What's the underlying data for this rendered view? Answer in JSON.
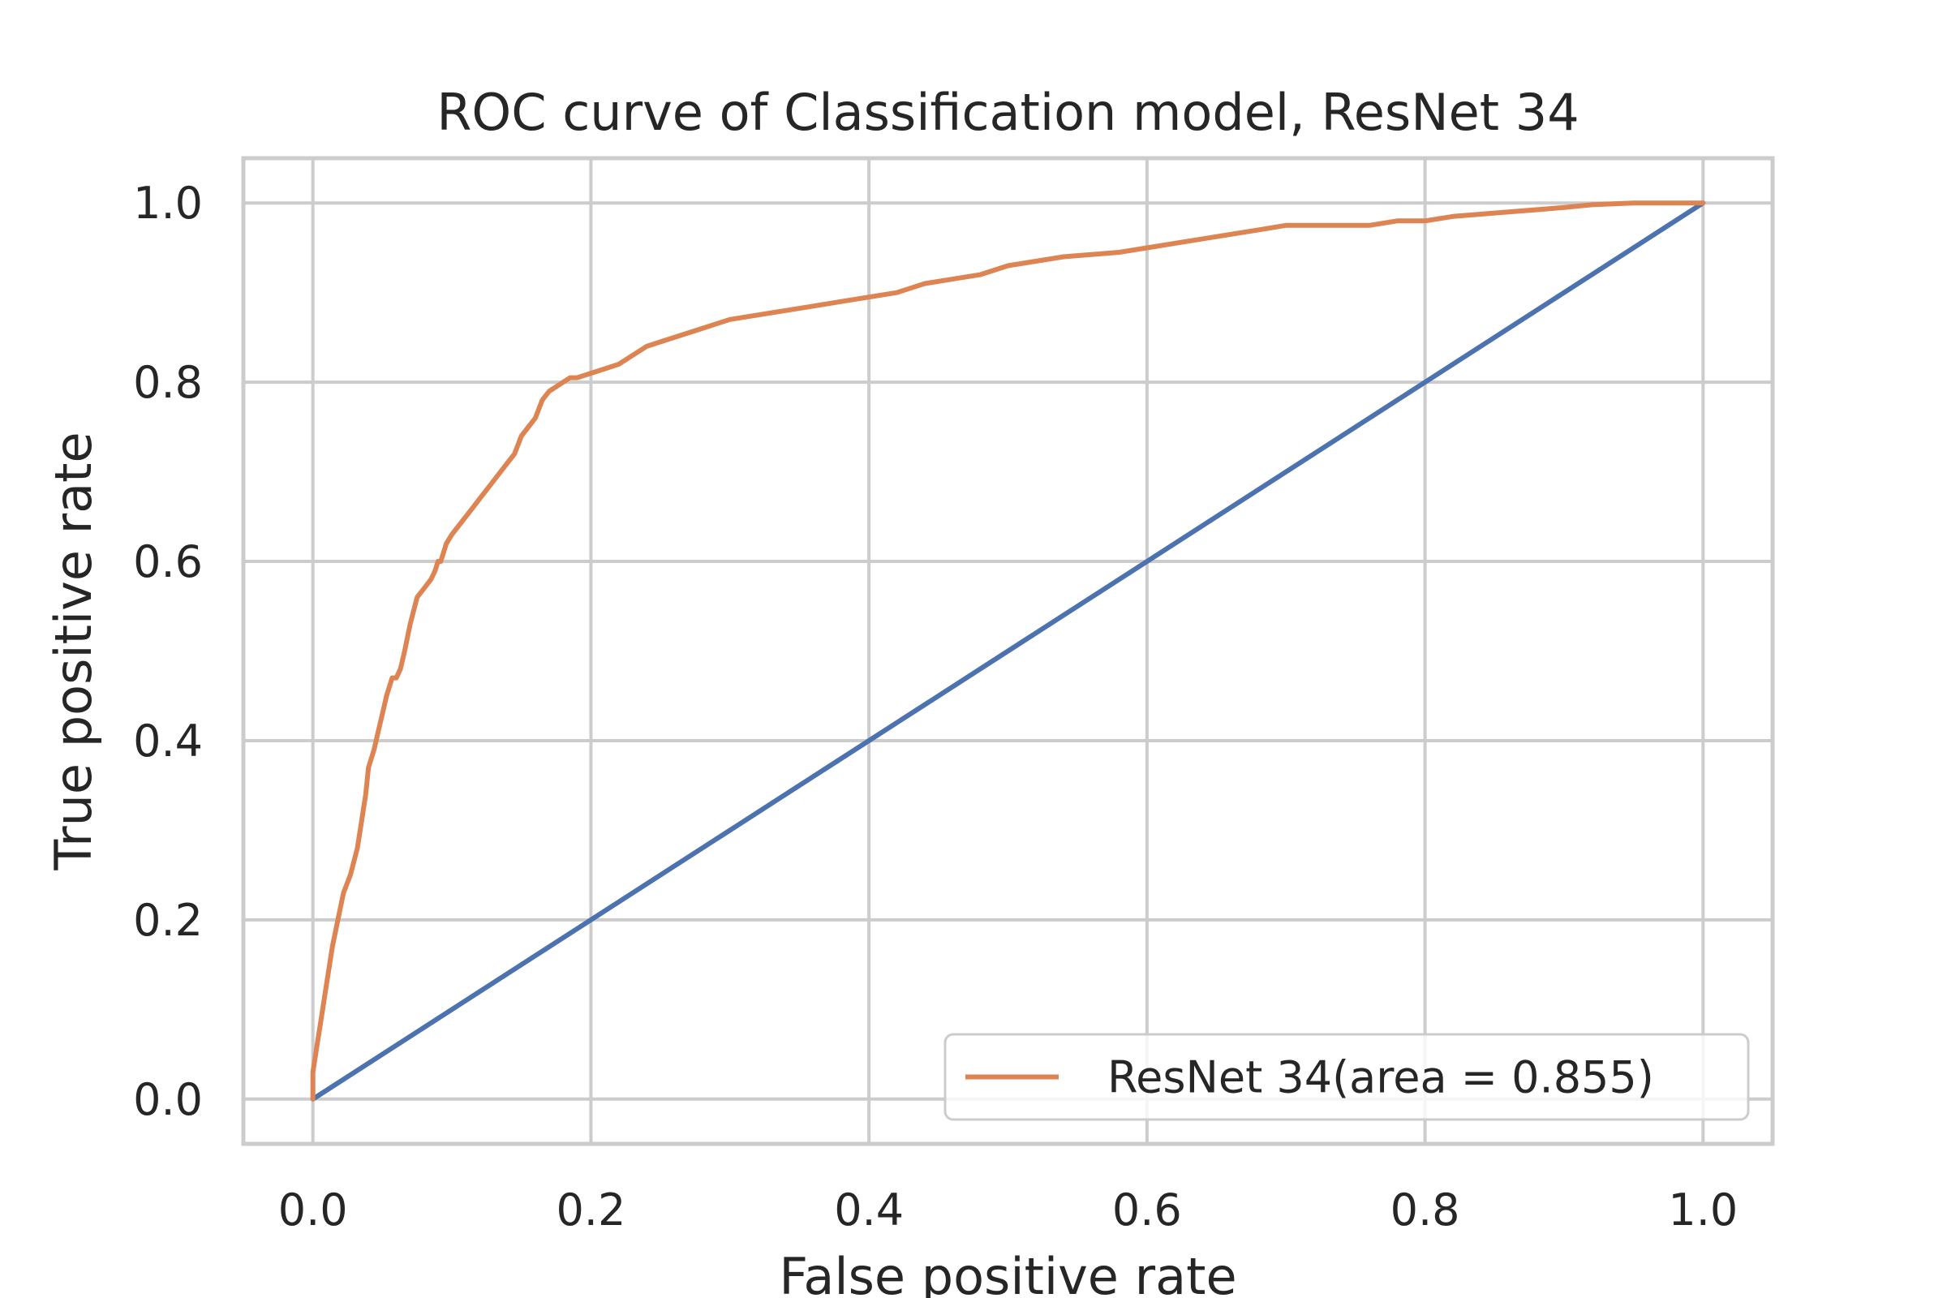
{
  "chart_data": {
    "type": "line",
    "title": "ROC curve of Classification model, ResNet 34",
    "xlabel": "False positive rate",
    "ylabel": "True positive rate",
    "xlim": [
      -0.05,
      1.05
    ],
    "ylim": [
      -0.05,
      1.05
    ],
    "grid": true,
    "legend_position": "lower-right",
    "x_ticks": [
      "0.0",
      "0.2",
      "0.4",
      "0.6",
      "0.8",
      "1.0"
    ],
    "y_ticks": [
      "0.0",
      "0.2",
      "0.4",
      "0.6",
      "0.8",
      "1.0"
    ],
    "series": [
      {
        "name": "ResNet 34(area = 0.855)",
        "color": "#dd8452",
        "x": [
          0.0,
          0.0,
          0.003,
          0.006,
          0.01,
          0.014,
          0.018,
          0.022,
          0.027,
          0.032,
          0.035,
          0.038,
          0.04,
          0.042,
          0.044,
          0.047,
          0.05,
          0.053,
          0.057,
          0.06,
          0.063,
          0.066,
          0.07,
          0.075,
          0.08,
          0.085,
          0.088,
          0.09,
          0.092,
          0.096,
          0.1,
          0.105,
          0.11,
          0.115,
          0.12,
          0.125,
          0.13,
          0.135,
          0.14,
          0.145,
          0.15,
          0.155,
          0.16,
          0.165,
          0.17,
          0.175,
          0.18,
          0.185,
          0.19,
          0.2,
          0.21,
          0.22,
          0.23,
          0.24,
          0.25,
          0.26,
          0.27,
          0.28,
          0.29,
          0.3,
          0.32,
          0.34,
          0.36,
          0.38,
          0.4,
          0.42,
          0.43,
          0.44,
          0.46,
          0.48,
          0.5,
          0.52,
          0.54,
          0.58,
          0.6,
          0.62,
          0.64,
          0.66,
          0.68,
          0.7,
          0.72,
          0.76,
          0.78,
          0.8,
          0.82,
          0.86,
          0.9,
          0.92,
          0.95,
          1.0
        ],
        "y": [
          0.0,
          0.03,
          0.06,
          0.09,
          0.13,
          0.17,
          0.2,
          0.23,
          0.25,
          0.28,
          0.31,
          0.34,
          0.37,
          0.38,
          0.39,
          0.41,
          0.43,
          0.45,
          0.47,
          0.47,
          0.48,
          0.5,
          0.53,
          0.56,
          0.57,
          0.58,
          0.59,
          0.6,
          0.6,
          0.62,
          0.63,
          0.64,
          0.65,
          0.66,
          0.67,
          0.68,
          0.69,
          0.7,
          0.71,
          0.72,
          0.74,
          0.75,
          0.76,
          0.78,
          0.79,
          0.795,
          0.8,
          0.805,
          0.805,
          0.81,
          0.815,
          0.82,
          0.83,
          0.84,
          0.845,
          0.85,
          0.855,
          0.86,
          0.865,
          0.87,
          0.875,
          0.88,
          0.885,
          0.89,
          0.895,
          0.9,
          0.905,
          0.91,
          0.915,
          0.92,
          0.93,
          0.935,
          0.94,
          0.945,
          0.95,
          0.955,
          0.96,
          0.965,
          0.97,
          0.975,
          0.975,
          0.975,
          0.98,
          0.98,
          0.985,
          0.99,
          0.995,
          0.998,
          1.0,
          1.0
        ]
      },
      {
        "name": "",
        "color": "#4c72b0",
        "x": [
          0.0,
          1.0
        ],
        "y": [
          0.0,
          1.0
        ]
      }
    ],
    "legend": [
      {
        "label": "ResNet 34(area = 0.855)",
        "color": "#dd8452"
      }
    ]
  }
}
